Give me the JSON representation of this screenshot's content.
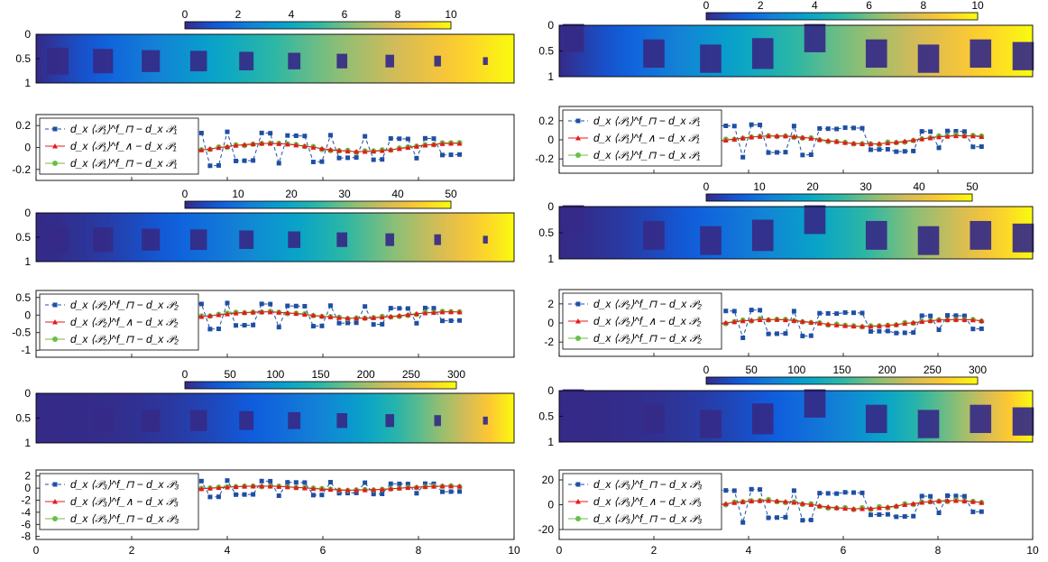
{
  "figure": {
    "colormap": [
      "#352a87",
      "#0f5cdd",
      "#1481d6",
      "#06a4ca",
      "#2eb7a4",
      "#87bf77",
      "#d1bb59",
      "#fec832",
      "#f9fb0e"
    ],
    "colorbars": [
      {
        "ticks": [
          0,
          2,
          4,
          6,
          8,
          10
        ]
      },
      {
        "ticks": [
          0,
          10,
          20,
          30,
          40,
          50
        ]
      },
      {
        "ticks": [
          0,
          50,
          100,
          150,
          200,
          250,
          300
        ]
      }
    ],
    "heatmap_yticks": [
      "0",
      "0.5",
      "1"
    ],
    "x_ticks": [
      "0",
      "2",
      "4",
      "6",
      "8",
      "10"
    ],
    "legend_labels": [
      [
        "d_x ⟨𝒫₁⟩^f_⊓ − d_x 𝒫₁",
        "d_x ⟨𝒫₁⟩^f_∧ − d_x 𝒫₁",
        "d_x ⟨𝒫₁⟩^f_⊓ − d_x 𝒫₁"
      ],
      [
        "d_x ⟨𝒫₂⟩^f_⊓ − d_x 𝒫₂",
        "d_x ⟨𝒫₂⟩^f_∧ − d_x 𝒫₂",
        "d_x ⟨𝒫₂⟩^f_⊓ − d_x 𝒫₂"
      ],
      [
        "d_x ⟨𝒫₃⟩^f_⊓ − d_x 𝒫₃",
        "d_x ⟨𝒫₃⟩^f_∧ − d_x 𝒫₃",
        "d_x ⟨𝒫₃⟩^f_⊓ − d_x 𝒫₃"
      ]
    ],
    "series_colors": [
      "#1f4fa3",
      "#e41a1c",
      "#6abf45"
    ]
  },
  "chart_data": [
    {
      "type": "heatmap",
      "panel": "left-1",
      "xlim": [
        0,
        10
      ],
      "ylim": [
        0,
        1
      ],
      "yticks": [
        "0",
        "0.5",
        "1"
      ],
      "colorbar": {
        "range": [
          0,
          10
        ],
        "ticks": [
          0,
          2,
          4,
          6,
          8,
          10
        ]
      }
    },
    {
      "type": "line",
      "panel": "left-1-errors",
      "xlim": [
        0,
        10
      ],
      "yticks": [
        "0.2",
        "0",
        "-0.2"
      ],
      "ylim": [
        -0.3,
        0.3
      ],
      "series": [
        {
          "name": "d_x ⟨𝒫₁⟩^f_⊓ − d_x 𝒫₁",
          "values": [
            0.3,
            0.25,
            0.2,
            -0.3,
            0.2,
            -0.25,
            0.15,
            -0.25,
            0.12,
            -0.2,
            0.1,
            -0.2,
            0.08,
            -0.15,
            0.05,
            -0.12,
            0.03
          ]
        },
        {
          "name": "d_x ⟨𝒫₁⟩^f_∧ − d_x 𝒫₁",
          "values": [
            0.02,
            0.01,
            0.0,
            0.01,
            0.0,
            -0.01,
            0.0,
            0.01,
            0.0,
            0.0,
            0.01,
            0.0,
            0.0,
            0.0,
            0.0,
            0.0,
            0.0
          ]
        },
        {
          "name": "d_x ⟨𝒫₁⟩^f_⊓ − d_x 𝒫₁",
          "values": [
            0.03,
            -0.02,
            0.02,
            -0.01,
            0.02,
            -0.02,
            0.01,
            0.0,
            0.01,
            -0.01,
            0.01,
            0.0,
            0.0,
            0.0,
            0.0,
            0.0,
            0.0
          ]
        }
      ]
    },
    {
      "type": "heatmap",
      "panel": "left-2",
      "colorbar": {
        "range": [
          0,
          50
        ],
        "ticks": [
          0,
          10,
          20,
          30,
          40,
          50
        ]
      }
    },
    {
      "type": "line",
      "panel": "left-2-errors",
      "yticks": [
        "0.5",
        "0",
        "-0.5",
        "-1"
      ],
      "ylim": [
        -1.2,
        0.7
      ]
    },
    {
      "type": "heatmap",
      "panel": "left-3",
      "colorbar": {
        "range": [
          0,
          330
        ],
        "ticks": [
          0,
          50,
          100,
          150,
          200,
          250,
          300
        ]
      }
    },
    {
      "type": "line",
      "panel": "left-3-errors",
      "yticks": [
        "2",
        "0",
        "-2",
        "-4",
        "-6",
        "-8"
      ],
      "ylim": [
        -8.5,
        3
      ],
      "xticks": [
        "0",
        "2",
        "4",
        "6",
        "8",
        "10"
      ]
    },
    {
      "type": "heatmap",
      "panel": "right-1",
      "colorbar": {
        "range": [
          0,
          10
        ],
        "ticks": [
          0,
          2,
          4,
          6,
          8,
          10
        ]
      }
    },
    {
      "type": "line",
      "panel": "right-1-errors",
      "yticks": [
        "0.2",
        "0",
        "-0.2"
      ],
      "ylim": [
        -0.35,
        0.35
      ]
    },
    {
      "type": "heatmap",
      "panel": "right-2",
      "colorbar": {
        "range": [
          0,
          50
        ],
        "ticks": [
          0,
          10,
          20,
          30,
          40,
          50
        ]
      }
    },
    {
      "type": "line",
      "panel": "right-2-errors",
      "yticks": [
        "2",
        "0",
        "-2"
      ],
      "ylim": [
        -3.5,
        3.5
      ]
    },
    {
      "type": "heatmap",
      "panel": "right-3",
      "colorbar": {
        "range": [
          0,
          330
        ],
        "ticks": [
          0,
          50,
          100,
          150,
          200,
          250,
          300
        ]
      }
    },
    {
      "type": "line",
      "panel": "right-3-errors",
      "yticks": [
        "20",
        "0",
        "-20"
      ],
      "ylim": [
        -28,
        28
      ],
      "xticks": [
        "0",
        "2",
        "4",
        "6",
        "8",
        "10"
      ]
    }
  ]
}
